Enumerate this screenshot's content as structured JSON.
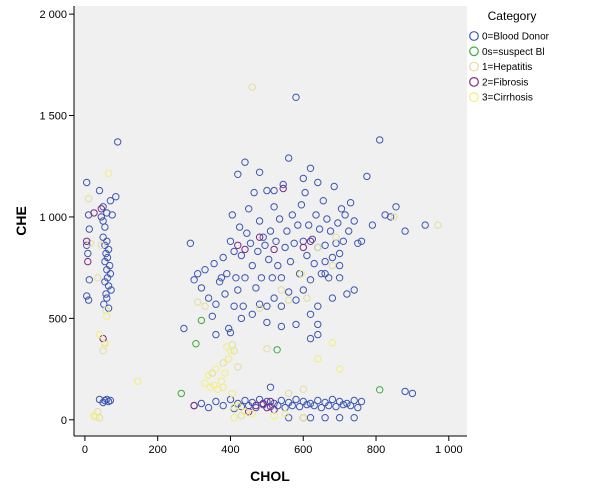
{
  "chart_data": {
    "type": "scatter",
    "xlabel": "CHOL",
    "ylabel": "CHE",
    "xlim": [
      -30,
      1050
    ],
    "ylim": [
      -80,
      2040
    ],
    "x_ticks": [
      0,
      200,
      400,
      600,
      800,
      1000
    ],
    "x_tick_labels": [
      "0",
      "200",
      "400",
      "600",
      "800",
      "1 000"
    ],
    "y_ticks": [
      0,
      500,
      1000,
      1500,
      2000
    ],
    "y_tick_labels": [
      "0",
      "500",
      "1 000",
      "1 500",
      "2 000"
    ],
    "grid": false,
    "legend_title": "Category",
    "legend_position": "right",
    "colors": {
      "plot_background": "#f0f0f0",
      "series": [
        "#3f57b3",
        "#3dab3d",
        "#e3dd9f",
        "#7d2a85",
        "#f2ee7c"
      ]
    },
    "series": [
      {
        "name": "0=Blood Donor",
        "points": [
          [
            5,
            1170
          ],
          [
            10,
            1010
          ],
          [
            12,
            940
          ],
          [
            5,
            860
          ],
          [
            8,
            820
          ],
          [
            12,
            690
          ],
          [
            5,
            610
          ],
          [
            10,
            590
          ],
          [
            40,
            1130
          ],
          [
            45,
            1000
          ],
          [
            50,
            980
          ],
          [
            55,
            950
          ],
          [
            50,
            900
          ],
          [
            60,
            880
          ],
          [
            55,
            860
          ],
          [
            65,
            840
          ],
          [
            58,
            820
          ],
          [
            62,
            800
          ],
          [
            55,
            780
          ],
          [
            68,
            760
          ],
          [
            60,
            740
          ],
          [
            70,
            720
          ],
          [
            62,
            700
          ],
          [
            55,
            680
          ],
          [
            65,
            660
          ],
          [
            72,
            640
          ],
          [
            58,
            620
          ],
          [
            60,
            600
          ],
          [
            52,
            570
          ],
          [
            65,
            550
          ],
          [
            50,
            1050
          ],
          [
            60,
            1020
          ],
          [
            70,
            1080
          ],
          [
            75,
            1010
          ],
          [
            90,
            1370
          ],
          [
            85,
            1100
          ],
          [
            40,
            100
          ],
          [
            50,
            85
          ],
          [
            55,
            95
          ],
          [
            60,
            100
          ],
          [
            65,
            90
          ],
          [
            70,
            95
          ],
          [
            272,
            450
          ],
          [
            290,
            870
          ],
          [
            300,
            690
          ],
          [
            310,
            720
          ],
          [
            320,
            650
          ],
          [
            330,
            740
          ],
          [
            340,
            600
          ],
          [
            350,
            510
          ],
          [
            355,
            770
          ],
          [
            360,
            570
          ],
          [
            370,
            680
          ],
          [
            375,
            700
          ],
          [
            380,
            800
          ],
          [
            385,
            620
          ],
          [
            390,
            720
          ],
          [
            395,
            450
          ],
          [
            400,
            880
          ],
          [
            405,
            1010
          ],
          [
            410,
            830
          ],
          [
            415,
            700
          ],
          [
            420,
            640
          ],
          [
            425,
            950
          ],
          [
            430,
            810
          ],
          [
            435,
            560
          ],
          [
            440,
            700
          ],
          [
            445,
            920
          ],
          [
            450,
            1040
          ],
          [
            455,
            870
          ],
          [
            460,
            760
          ],
          [
            465,
            1120
          ],
          [
            470,
            650
          ],
          [
            475,
            830
          ],
          [
            480,
            980
          ],
          [
            485,
            700
          ],
          [
            490,
            900
          ],
          [
            495,
            860
          ],
          [
            500,
            1130
          ],
          [
            505,
            790
          ],
          [
            510,
            930
          ],
          [
            515,
            700
          ],
          [
            520,
            1050
          ],
          [
            525,
            880
          ],
          [
            530,
            760
          ],
          [
            535,
            990
          ],
          [
            540,
            700
          ],
          [
            545,
            1160
          ],
          [
            550,
            850
          ],
          [
            555,
            930
          ],
          [
            560,
            1290
          ],
          [
            565,
            780
          ],
          [
            570,
            1010
          ],
          [
            575,
            870
          ],
          [
            580,
            1590
          ],
          [
            585,
            960
          ],
          [
            590,
            720
          ],
          [
            595,
            1060
          ],
          [
            600,
            880
          ],
          [
            605,
            1120
          ],
          [
            610,
            810
          ],
          [
            615,
            960
          ],
          [
            620,
            1240
          ],
          [
            625,
            890
          ],
          [
            630,
            770
          ],
          [
            635,
            1010
          ],
          [
            640,
            850
          ],
          [
            645,
            940
          ],
          [
            650,
            720
          ],
          [
            655,
            1080
          ],
          [
            660,
            860
          ],
          [
            665,
            990
          ],
          [
            670,
            700
          ],
          [
            675,
            930
          ],
          [
            680,
            800
          ],
          [
            685,
            1150
          ],
          [
            690,
            870
          ],
          [
            695,
            970
          ],
          [
            700,
            760
          ],
          [
            705,
            1040
          ],
          [
            710,
            880
          ],
          [
            715,
            1010
          ],
          [
            720,
            620
          ],
          [
            725,
            930
          ],
          [
            730,
            1070
          ],
          [
            740,
            980
          ],
          [
            750,
            870
          ],
          [
            760,
            880
          ],
          [
            775,
            1200
          ],
          [
            790,
            960
          ],
          [
            810,
            1380
          ],
          [
            825,
            1010
          ],
          [
            840,
            1000
          ],
          [
            855,
            1050
          ],
          [
            880,
            930
          ],
          [
            935,
            960
          ],
          [
            420,
            1210
          ],
          [
            440,
            1270
          ],
          [
            480,
            1220
          ],
          [
            520,
            1130
          ],
          [
            600,
            1190
          ],
          [
            640,
            1170
          ],
          [
            410,
            560
          ],
          [
            430,
            500
          ],
          [
            460,
            520
          ],
          [
            480,
            570
          ],
          [
            500,
            480
          ],
          [
            520,
            600
          ],
          [
            540,
            560
          ],
          [
            560,
            630
          ],
          [
            580,
            590
          ],
          [
            600,
            640
          ],
          [
            620,
            690
          ],
          [
            640,
            560
          ],
          [
            660,
            720
          ],
          [
            680,
            600
          ],
          [
            700,
            700
          ],
          [
            740,
            640
          ],
          [
            660,
            780
          ],
          [
            700,
            820
          ],
          [
            640,
            470
          ],
          [
            580,
            470
          ],
          [
            540,
            460
          ],
          [
            620,
            520
          ],
          [
            360,
            420
          ],
          [
            400,
            430
          ],
          [
            500,
            560
          ],
          [
            620,
            400
          ],
          [
            640,
            420
          ],
          [
            300,
            70
          ],
          [
            320,
            80
          ],
          [
            340,
            60
          ],
          [
            360,
            90
          ],
          [
            380,
            70
          ],
          [
            400,
            100
          ],
          [
            410,
            55
          ],
          [
            420,
            80
          ],
          [
            430,
            65
          ],
          [
            440,
            95
          ],
          [
            450,
            70
          ],
          [
            460,
            85
          ],
          [
            470,
            60
          ],
          [
            480,
            100
          ],
          [
            490,
            75
          ],
          [
            500,
            90
          ],
          [
            510,
            65
          ],
          [
            520,
            80
          ],
          [
            530,
            70
          ],
          [
            540,
            95
          ],
          [
            550,
            60
          ],
          [
            560,
            85
          ],
          [
            570,
            70
          ],
          [
            580,
            100
          ],
          [
            590,
            65
          ],
          [
            600,
            90
          ],
          [
            610,
            75
          ],
          [
            620,
            80
          ],
          [
            630,
            70
          ],
          [
            640,
            95
          ],
          [
            650,
            60
          ],
          [
            660,
            85
          ],
          [
            670,
            70
          ],
          [
            680,
            100
          ],
          [
            690,
            65
          ],
          [
            700,
            90
          ],
          [
            710,
            75
          ],
          [
            720,
            80
          ],
          [
            730,
            70
          ],
          [
            740,
            95
          ],
          [
            750,
            60
          ],
          [
            760,
            90
          ],
          [
            880,
            140
          ],
          [
            900,
            130
          ],
          [
            560,
            10
          ],
          [
            600,
            10
          ],
          [
            620,
            10
          ],
          [
            660,
            10
          ],
          [
            700,
            10
          ],
          [
            740,
            10
          ],
          [
            510,
            160
          ]
        ]
      },
      {
        "name": "0s=suspect Bl",
        "points": [
          [
            265,
            130
          ],
          [
            305,
            375
          ],
          [
            320,
            490
          ],
          [
            528,
            345
          ],
          [
            810,
            148
          ]
        ]
      },
      {
        "name": "1=Hepatitis",
        "points": [
          [
            10,
            1090
          ],
          [
            15,
            870
          ],
          [
            35,
            700
          ],
          [
            45,
            860
          ],
          [
            55,
            380
          ],
          [
            50,
            340
          ],
          [
            58,
            540
          ],
          [
            25,
            20
          ],
          [
            35,
            40
          ],
          [
            40,
            10
          ],
          [
            310,
            580
          ],
          [
            330,
            560
          ],
          [
            350,
            230
          ],
          [
            380,
            280
          ],
          [
            395,
            300
          ],
          [
            405,
            370
          ],
          [
            410,
            340
          ],
          [
            420,
            260
          ],
          [
            480,
            550
          ],
          [
            500,
            350
          ],
          [
            560,
            590
          ],
          [
            640,
            850
          ],
          [
            680,
            760
          ],
          [
            690,
            900
          ],
          [
            560,
            130
          ],
          [
            600,
            150
          ],
          [
            850,
            1000
          ],
          [
            970,
            960
          ],
          [
            460,
            1640
          ],
          [
            410,
            60
          ],
          [
            430,
            20
          ],
          [
            610,
            600
          ],
          [
            540,
            640
          ]
        ]
      },
      {
        "name": "2=Fibrosis",
        "points": [
          [
            5,
            880
          ],
          [
            8,
            780
          ],
          [
            25,
            1020
          ],
          [
            45,
            1040
          ],
          [
            50,
            400
          ],
          [
            470,
            70
          ],
          [
            500,
            60
          ],
          [
            520,
            50
          ],
          [
            420,
            860
          ],
          [
            440,
            840
          ],
          [
            480,
            900
          ],
          [
            520,
            840
          ],
          [
            545,
            1140
          ],
          [
            600,
            850
          ],
          [
            620,
            880
          ],
          [
            300,
            70
          ],
          [
            450,
            40
          ],
          [
            490,
            80
          ],
          [
            510,
            90
          ]
        ]
      },
      {
        "name": "3=Cirrhosis",
        "points": [
          [
            65,
            1215
          ],
          [
            40,
            420
          ],
          [
            55,
            370
          ],
          [
            25,
            20
          ],
          [
            30,
            15
          ],
          [
            60,
            510
          ],
          [
            145,
            190
          ],
          [
            330,
            180
          ],
          [
            340,
            220
          ],
          [
            345,
            160
          ],
          [
            355,
            170
          ],
          [
            360,
            250
          ],
          [
            365,
            150
          ],
          [
            375,
            190
          ],
          [
            380,
            160
          ],
          [
            385,
            230
          ],
          [
            390,
            360
          ],
          [
            395,
            300
          ],
          [
            400,
            340
          ],
          [
            405,
            130
          ],
          [
            410,
            10
          ],
          [
            420,
            70
          ],
          [
            440,
            40
          ],
          [
            460,
            30
          ],
          [
            520,
            20
          ],
          [
            550,
            30
          ],
          [
            595,
            720
          ],
          [
            600,
            10
          ],
          [
            640,
            300
          ],
          [
            680,
            380
          ],
          [
            700,
            250
          ]
        ]
      }
    ]
  }
}
